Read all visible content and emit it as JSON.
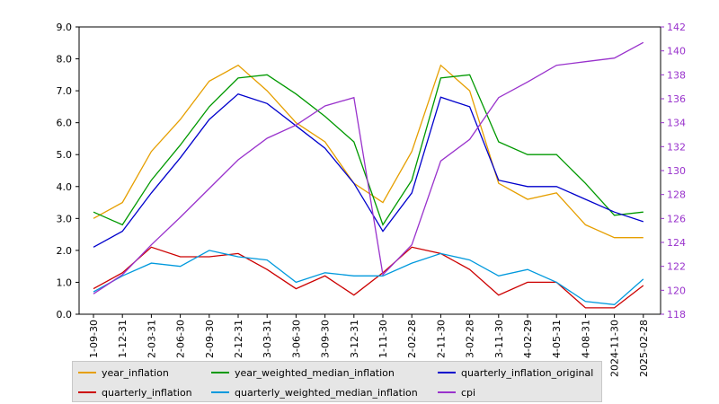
{
  "chart_data": {
    "type": "line",
    "x": [
      "2021-09-30",
      "2021-12-31",
      "2022-03-31",
      "2022-06-30",
      "2022-09-30",
      "2022-12-31",
      "2023-03-31",
      "2023-06-30",
      "2023-09-30",
      "2023-12-31",
      "2021-11-30",
      "2022-02-28",
      "2022-11-30",
      "2023-02-28",
      "2023-11-30",
      "2024-02-29",
      "2024-05-31",
      "2024-08-31",
      "2024-11-30",
      "2025-02-28"
    ],
    "x_tick_labels": [
      "1-09-30",
      "1-12-31",
      "2-03-31",
      "2-06-30",
      "2-09-30",
      "2-12-31",
      "3-03-31",
      "3-06-30",
      "3-09-30",
      "3-12-31",
      "1-11-30",
      "2-02-28",
      "2-11-30",
      "3-02-28",
      "3-11-30",
      "4-02-29",
      "4-05-31",
      "4-08-31",
      "2024-11-30",
      "2025-02-28"
    ],
    "ylim_left": [
      0,
      9
    ],
    "yticks_left": [
      "0.0",
      "1.0",
      "2.0",
      "3.0",
      "4.0",
      "5.0",
      "6.0",
      "7.0",
      "8.0",
      "9.0"
    ],
    "ylim_right": [
      118,
      142
    ],
    "yticks_right": [
      "118",
      "120",
      "122",
      "124",
      "126",
      "128",
      "130",
      "132",
      "134",
      "136",
      "138",
      "140",
      "142"
    ],
    "series": [
      {
        "name": "year_inflation",
        "color": "#E69F00",
        "axis": "left",
        "values": [
          3.0,
          3.5,
          5.1,
          6.1,
          7.3,
          7.8,
          7.0,
          6.0,
          5.4,
          4.1,
          3.5,
          5.1,
          7.8,
          7.0,
          4.1,
          3.6,
          3.8,
          2.8,
          2.4,
          2.4
        ]
      },
      {
        "name": "quarterly_inflation",
        "color": "#CC0000",
        "axis": "left",
        "values": [
          0.8,
          1.3,
          2.1,
          1.8,
          1.8,
          1.9,
          1.4,
          0.8,
          1.2,
          0.6,
          1.3,
          2.1,
          1.9,
          1.4,
          0.6,
          1.0,
          1.0,
          0.2,
          0.2,
          0.9
        ]
      },
      {
        "name": "year_weighted_median_inflation",
        "color": "#009900",
        "axis": "left",
        "values": [
          3.2,
          2.8,
          4.2,
          5.3,
          6.5,
          7.4,
          7.5,
          6.9,
          6.2,
          5.4,
          2.8,
          4.2,
          7.4,
          7.5,
          5.4,
          5.0,
          5.0,
          4.1,
          3.1,
          3.2
        ]
      },
      {
        "name": "quarterly_weighted_median_inflation",
        "color": "#0099DD",
        "axis": "left",
        "values": [
          0.7,
          1.2,
          1.6,
          1.5,
          2.0,
          1.8,
          1.7,
          1.0,
          1.3,
          1.2,
          1.2,
          1.6,
          1.9,
          1.7,
          1.2,
          1.4,
          1.0,
          0.4,
          0.3,
          1.1
        ]
      },
      {
        "name": "quarterly_inflation_original",
        "color": "#0000CC",
        "axis": "left",
        "values": [
          2.1,
          2.6,
          3.8,
          4.9,
          6.1,
          6.9,
          6.6,
          5.9,
          5.2,
          4.1,
          2.6,
          3.8,
          6.8,
          6.5,
          4.2,
          4.0,
          4.0,
          3.6,
          3.2,
          2.9
        ]
      },
      {
        "name": "cpi",
        "color": "#9932CC",
        "axis": "right",
        "values": [
          119.7,
          121.3,
          123.8,
          126.1,
          128.5,
          130.9,
          132.7,
          133.8,
          135.4,
          136.1,
          121.3,
          123.8,
          130.8,
          132.6,
          136.1,
          137.4,
          138.8,
          139.1,
          139.4,
          140.7
        ]
      }
    ],
    "legend": {
      "placement": "bottom",
      "entries": [
        "year_inflation",
        "year_weighted_median_inflation",
        "quarterly_inflation_original",
        "quarterly_inflation",
        "quarterly_weighted_median_inflation",
        "cpi"
      ]
    },
    "grid": false
  }
}
